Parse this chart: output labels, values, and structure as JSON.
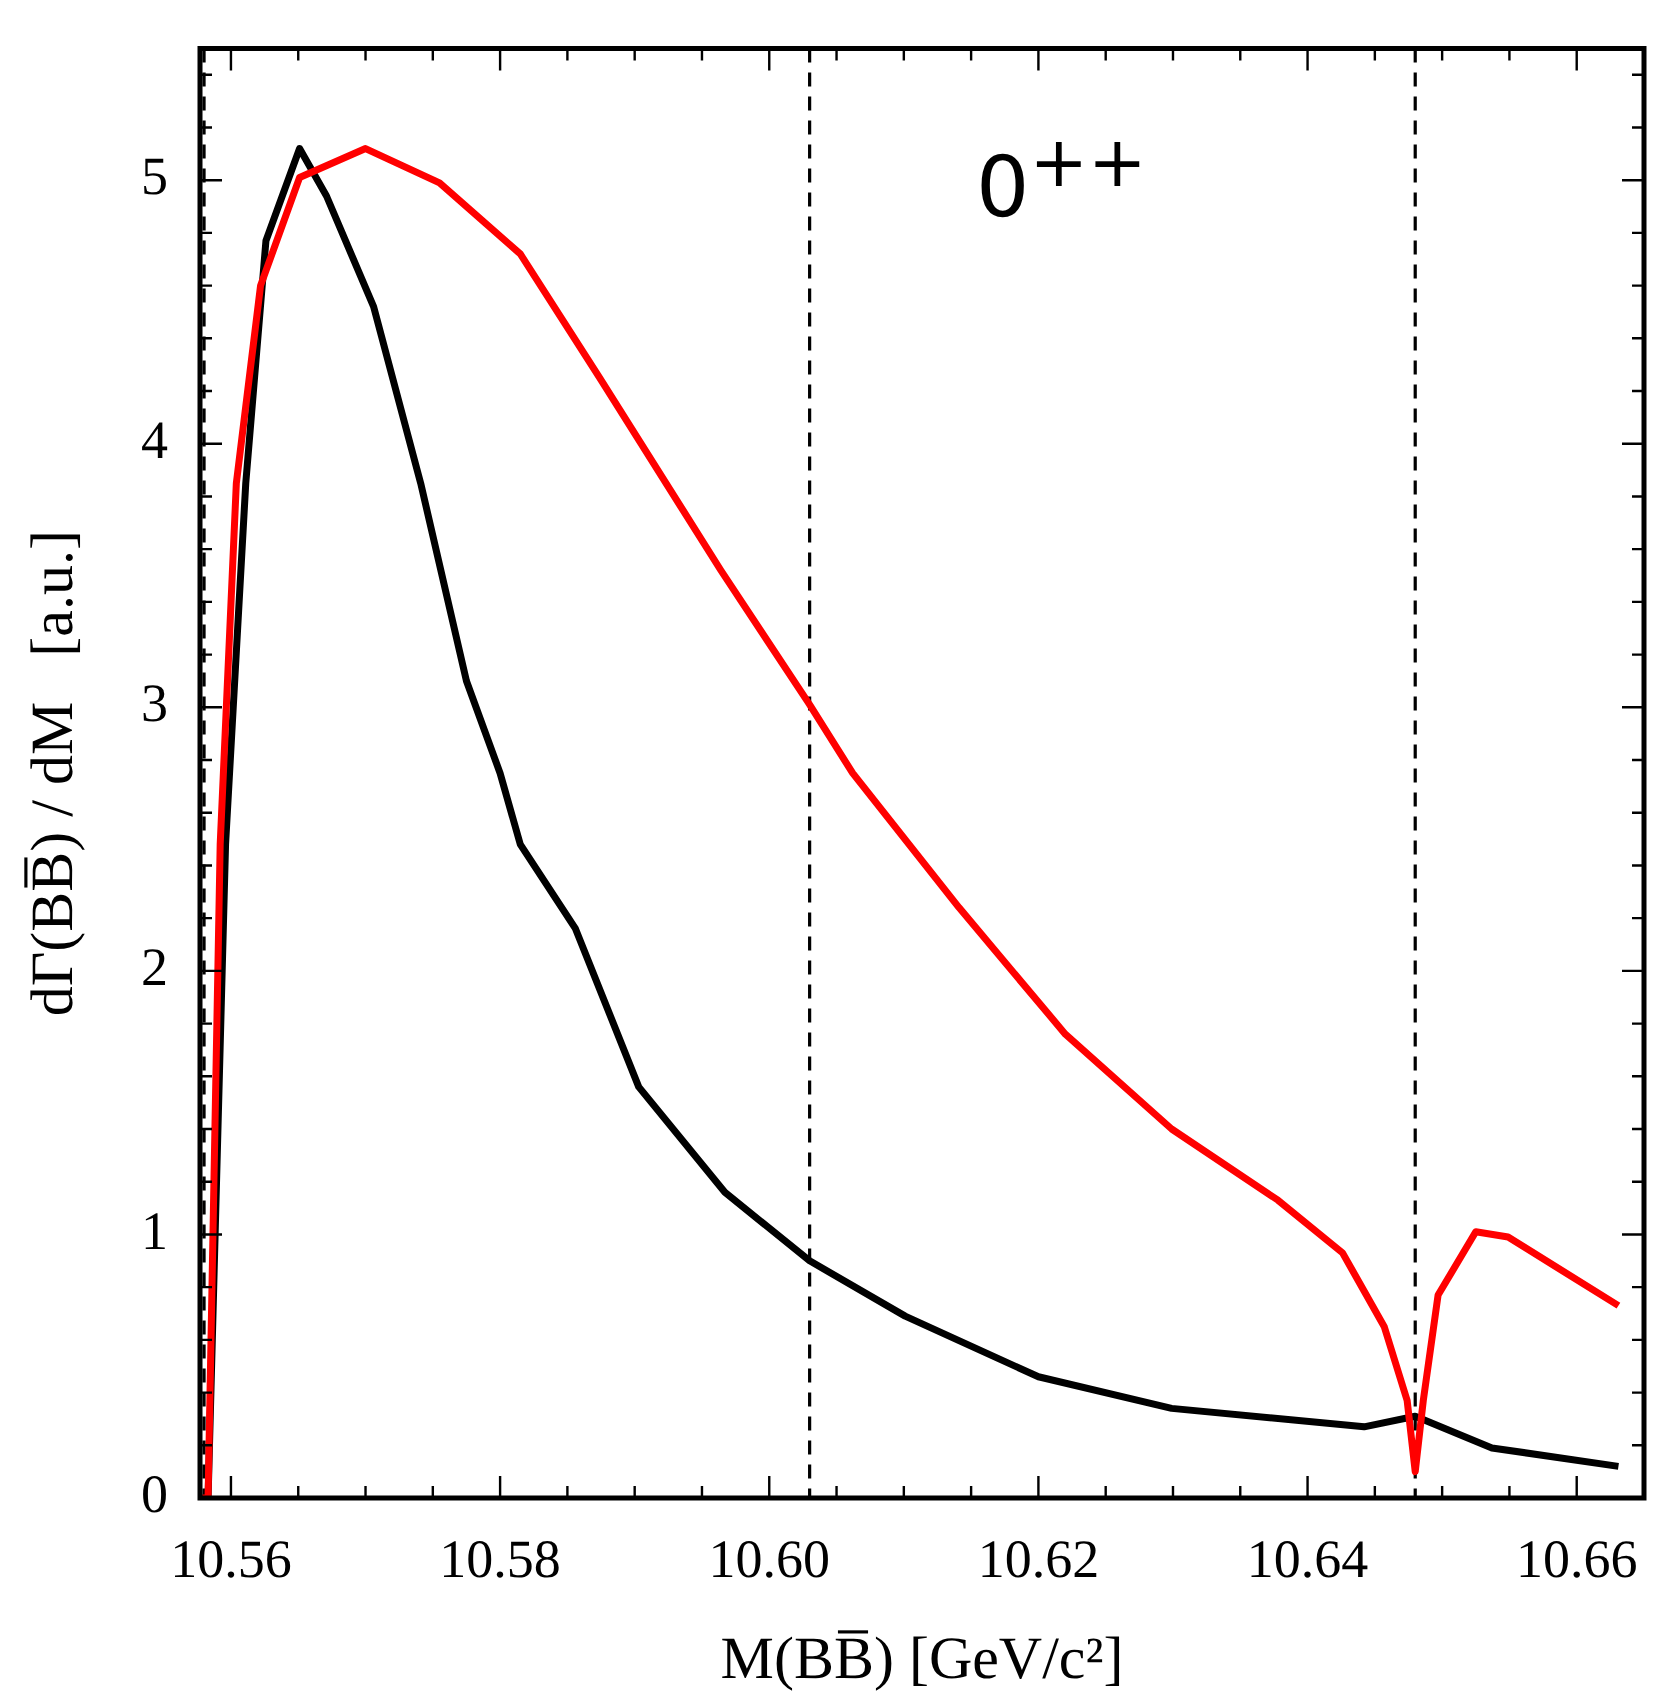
{
  "chart_data": {
    "type": "line",
    "xlabel": "M(BB̅) [GeV/c²]",
    "ylabel": "dΓ(BB̅) / dM   [a.u.]",
    "annotations": [
      "0$^{++}$"
    ],
    "xlim": [
      10.5577,
      10.665
    ],
    "ylim": [
      0,
      5.5
    ],
    "xticks": [
      {
        "value": 10.56,
        "label": "10.56"
      },
      {
        "value": 10.565,
        "label": null
      },
      {
        "value": 10.57,
        "label": null
      },
      {
        "value": 10.575,
        "label": null
      },
      {
        "value": 10.58,
        "label": "10.58"
      },
      {
        "value": 10.585,
        "label": null
      },
      {
        "value": 10.59,
        "label": null
      },
      {
        "value": 10.595,
        "label": null
      },
      {
        "value": 10.6,
        "label": "10.60"
      },
      {
        "value": 10.605,
        "label": null
      },
      {
        "value": 10.61,
        "label": null
      },
      {
        "value": 10.615,
        "label": null
      },
      {
        "value": 10.62,
        "label": "10.62"
      },
      {
        "value": 10.625,
        "label": null
      },
      {
        "value": 10.63,
        "label": null
      },
      {
        "value": 10.635,
        "label": null
      },
      {
        "value": 10.64,
        "label": "10.64"
      },
      {
        "value": 10.645,
        "label": null
      },
      {
        "value": 10.65,
        "label": null
      },
      {
        "value": 10.655,
        "label": null
      },
      {
        "value": 10.66,
        "label": "10.66"
      }
    ],
    "yticks": [
      0,
      {
        "value": 0.2,
        "label": null
      },
      {
        "value": 0.4,
        "label": null
      },
      {
        "value": 0.6,
        "label": null
      },
      {
        "value": 0.8,
        "label": null
      },
      1,
      {
        "value": 1.2,
        "label": null
      },
      {
        "value": 1.4,
        "label": null
      },
      {
        "value": 1.6,
        "label": null
      },
      {
        "value": 1.8,
        "label": null
      },
      2,
      {
        "value": 2.2,
        "label": null
      },
      {
        "value": 2.4,
        "label": null
      },
      {
        "value": 2.6,
        "label": null
      },
      {
        "value": 2.8,
        "label": null
      },
      3,
      {
        "value": 3.2,
        "label": null
      },
      {
        "value": 3.4,
        "label": null
      },
      {
        "value": 3.6,
        "label": null
      },
      {
        "value": 3.8,
        "label": null
      },
      4,
      {
        "value": 4.2,
        "label": null
      },
      {
        "value": 4.4,
        "label": null
      },
      {
        "value": 4.6,
        "label": null
      },
      {
        "value": 4.8,
        "label": null
      },
      5,
      {
        "value": 5.2,
        "label": null
      },
      {
        "value": 5.4,
        "label": null
      }
    ],
    "ref_lines": [
      {
        "axis": "x",
        "value": 10.558,
        "color": "#000000",
        "line_style": "dashed"
      },
      {
        "axis": "x",
        "value": 10.603,
        "color": "#000000",
        "line_style": "dashed"
      },
      {
        "axis": "x",
        "value": 10.648,
        "color": "#000000",
        "line_style": "dashed"
      }
    ],
    "series": [
      {
        "color": "#ff0000",
        "x": [
          10.5578,
          10.5583,
          10.5592,
          10.5604,
          10.5622,
          10.5651,
          10.57,
          10.5755,
          10.5815,
          10.5874,
          10.5964,
          10.603,
          10.6062,
          10.6141,
          10.622,
          10.6299,
          10.6378,
          10.6426,
          10.6457,
          10.6474,
          10.648,
          10.6486,
          10.6497,
          10.6525,
          10.6549,
          10.6631
        ],
        "values": [
          0,
          0,
          2.48,
          3.85,
          4.6,
          5.01,
          5.12,
          4.99,
          4.72,
          4.25,
          3.52,
          3.01,
          2.75,
          2.24,
          1.76,
          1.4,
          1.13,
          0.93,
          0.65,
          0.37,
          0.1,
          0.37,
          0.77,
          1.01,
          0.99,
          0.73
        ]
      },
      {
        "color": "#000000",
        "x": [
          10.5583,
          10.5596,
          10.5611,
          10.5626,
          10.5651,
          10.5671,
          10.5706,
          10.5741,
          10.5775,
          10.58,
          10.5815,
          10.5856,
          10.5903,
          10.5967,
          10.603,
          10.6101,
          10.62,
          10.6299,
          10.6442,
          10.648,
          10.6537,
          10.6631
        ],
        "values": [
          0,
          2.48,
          3.85,
          4.77,
          5.12,
          4.94,
          4.52,
          3.85,
          3.1,
          2.75,
          2.48,
          2.16,
          1.56,
          1.16,
          0.9,
          0.69,
          0.46,
          0.34,
          0.27,
          0.31,
          0.19,
          0.12
        ]
      }
    ]
  }
}
